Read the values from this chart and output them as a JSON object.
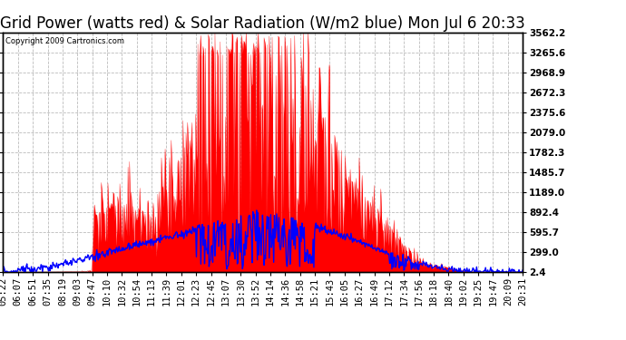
{
  "title": "Grid Power (watts red) & Solar Radiation (W/m2 blue) Mon Jul 6 20:33",
  "copyright": "Copyright 2009 Cartronics.com",
  "bg_color": "#ffffff",
  "plot_bg_color": "#ffffff",
  "grid_color": "#bbbbbb",
  "ylim": [
    2.4,
    3562.2
  ],
  "yticks": [
    2.4,
    299.0,
    595.7,
    892.4,
    1189.0,
    1485.7,
    1782.3,
    2079.0,
    2375.6,
    2672.3,
    2968.9,
    3265.6,
    3562.2
  ],
  "xtick_labels": [
    "05:22",
    "06:07",
    "06:51",
    "07:35",
    "08:19",
    "09:03",
    "09:47",
    "10:10",
    "10:32",
    "10:54",
    "11:13",
    "11:39",
    "12:01",
    "12:23",
    "12:45",
    "13:07",
    "13:30",
    "13:52",
    "14:14",
    "14:36",
    "14:58",
    "15:21",
    "15:43",
    "16:05",
    "16:27",
    "16:49",
    "17:12",
    "17:34",
    "17:56",
    "18:18",
    "18:40",
    "19:02",
    "19:25",
    "19:47",
    "20:09",
    "20:31"
  ],
  "red_color": "#ff0000",
  "blue_color": "#0000ff",
  "title_fontsize": 12,
  "tick_fontsize": 7.5
}
